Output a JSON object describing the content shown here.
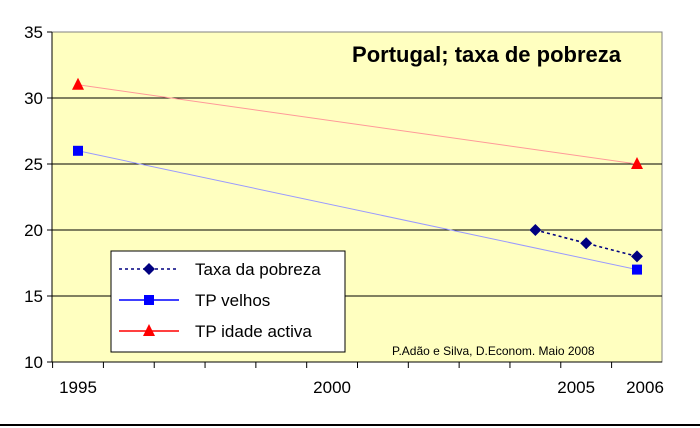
{
  "chart_data": {
    "type": "line",
    "title": "Portugal; taxa de pobreza",
    "annotation": "P.Adão e Silva, D.Econom. Maio 2008",
    "xlabel": "",
    "ylabel": "",
    "xlim": [
      1995,
      2006
    ],
    "ylim": [
      10,
      35
    ],
    "yticks": [
      10,
      15,
      20,
      25,
      30,
      35
    ],
    "xticks": [
      1995,
      2000,
      2005,
      2006
    ],
    "grid": true,
    "legend_position": "bottom-left",
    "colors": {
      "plot_background": "#ffffc0",
      "gridline": "#000000"
    },
    "series": [
      {
        "name": "Taxa da pobreza",
        "x": [
          2004,
          2005,
          2006
        ],
        "y": [
          20,
          19,
          18
        ],
        "color": "#000080",
        "line_style": "dotted",
        "marker": "diamond",
        "line_color": "#000080"
      },
      {
        "name": "TP velhos",
        "x": [
          1995,
          2006
        ],
        "y": [
          26,
          17
        ],
        "color": "#0000ff",
        "line_style": "solid",
        "marker": "square",
        "line_color": "#9999ff"
      },
      {
        "name": "TP idade activa",
        "x": [
          1995,
          2006
        ],
        "y": [
          31,
          25
        ],
        "color": "#ff0000",
        "line_style": "solid",
        "marker": "triangle",
        "line_color": "#ff9999"
      }
    ]
  }
}
